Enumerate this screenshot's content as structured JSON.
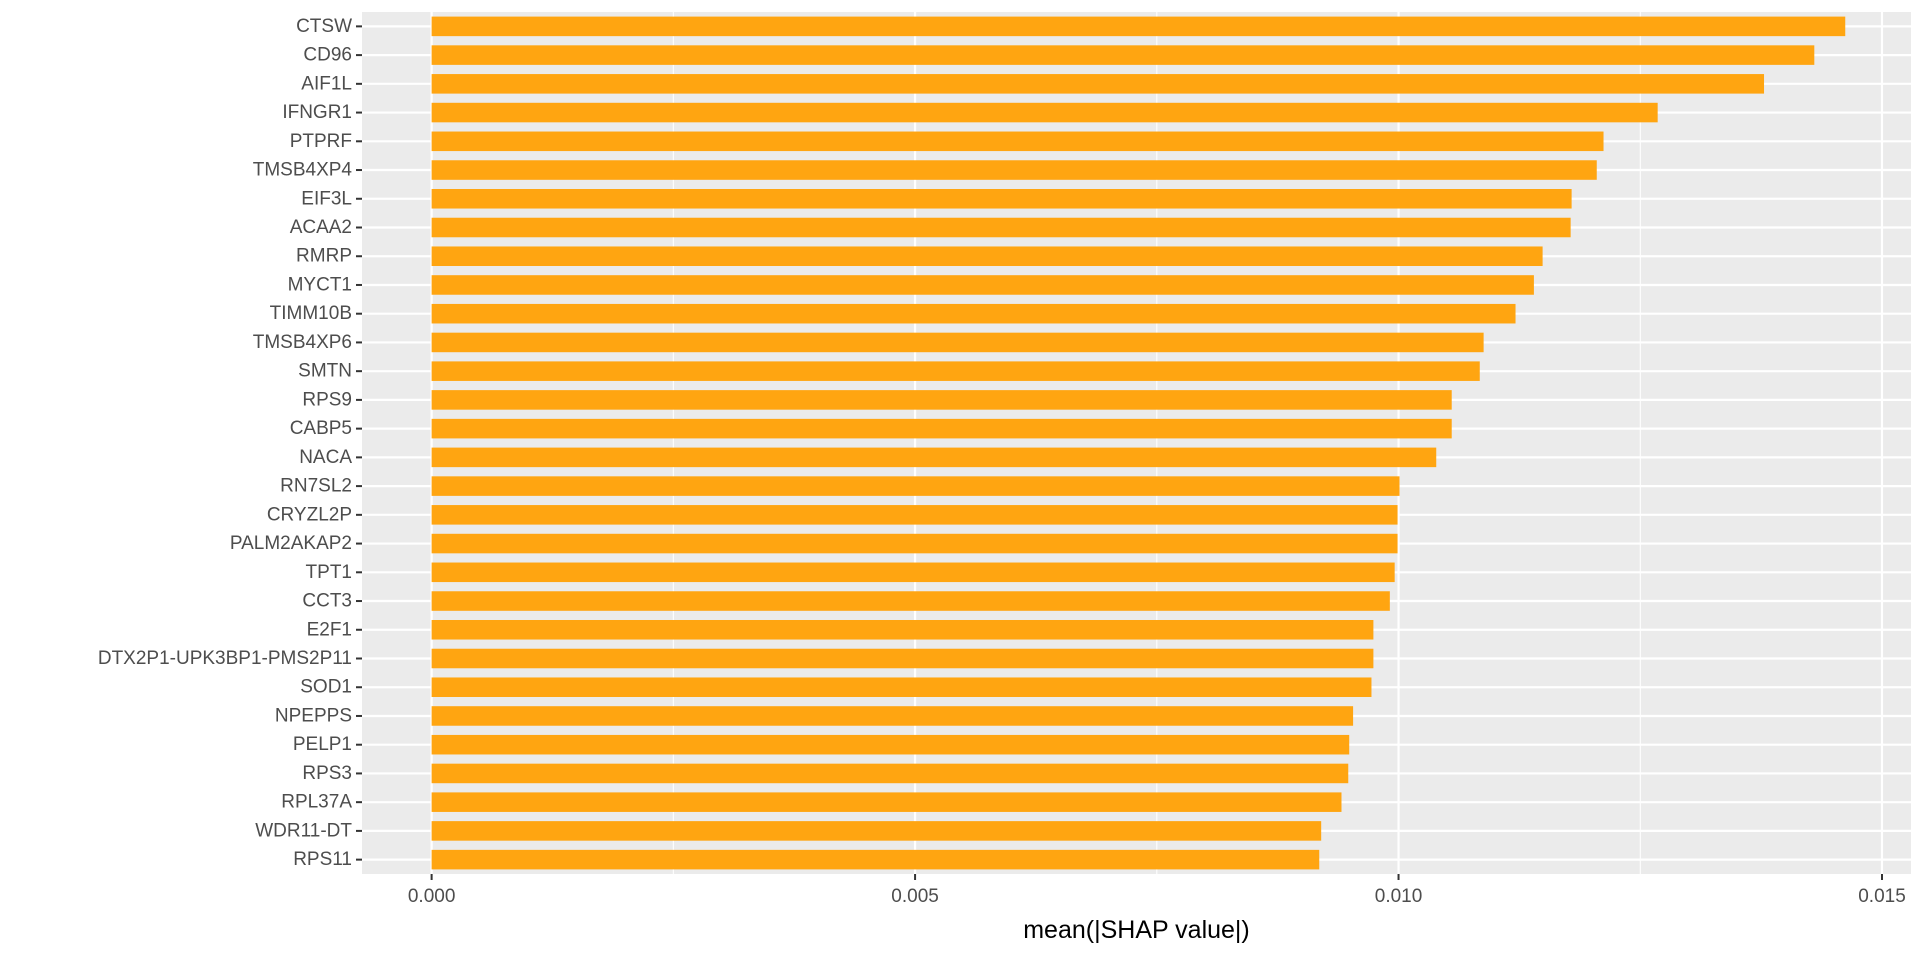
{
  "chart_data": {
    "type": "bar",
    "orientation": "horizontal",
    "title": "",
    "xlabel": "mean(|SHAP value|)",
    "ylabel": "",
    "xlim": [
      -0.00072,
      0.0153
    ],
    "x_ticks": [
      0.0,
      0.005,
      0.01,
      0.015
    ],
    "x_tick_labels": [
      "0.000",
      "0.005",
      "0.010",
      "0.015"
    ],
    "grid": true,
    "bar_color": "#FFA511",
    "panel_color": "#EBEBEB",
    "grid_color": "#FFFFFF",
    "categories": [
      "CTSW",
      "CD96",
      "AIF1L",
      "IFNGR1",
      "PTPRF",
      "TMSB4XP4",
      "EIF3L",
      "ACAA2",
      "RMRP",
      "MYCT1",
      "TIMM10B",
      "TMSB4XP6",
      "SMTN",
      "RPS9",
      "CABP5",
      "NACA",
      "RN7SL2",
      "CRYZL2P",
      "PALM2AKAP2",
      "TPT1",
      "CCT3",
      "E2F1",
      "DTX2P1-UPK3BP1-PMS2P11",
      "SOD1",
      "NPEPPS",
      "PELP1",
      "RPS3",
      "RPL37A",
      "WDR11-DT",
      "RPS11"
    ],
    "values": [
      0.01462,
      0.0143,
      0.01378,
      0.01268,
      0.01212,
      0.01205,
      0.01179,
      0.01178,
      0.01149,
      0.0114,
      0.01121,
      0.01088,
      0.01084,
      0.01055,
      0.01055,
      0.01039,
      0.01001,
      0.00999,
      0.00999,
      0.00996,
      0.00991,
      0.00974,
      0.00974,
      0.00972,
      0.00953,
      0.00949,
      0.00948,
      0.00941,
      0.0092,
      0.00918
    ]
  }
}
